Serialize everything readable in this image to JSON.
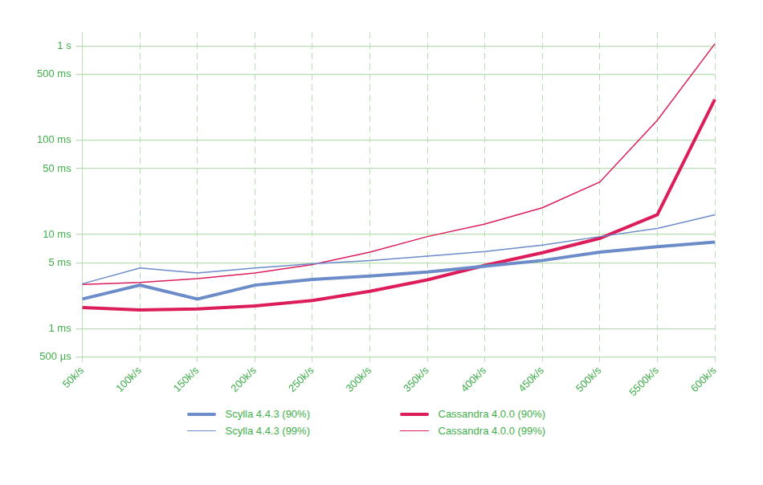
{
  "chart_data": {
    "type": "line",
    "categories": [
      "50k/s",
      "100k/s",
      "150k/s",
      "200k/s",
      "250k/s",
      "300k/s",
      "350k/s",
      "400k/s",
      "450k/s",
      "500k/s",
      "5500k/s",
      "600k/s"
    ],
    "series": [
      {
        "name": "Scylla 4.4.3 (90%)",
        "color": "#6b8bc9",
        "line_style": "thick",
        "values": [
          2.07,
          2.9,
          2.07,
          2.9,
          3.34,
          3.63,
          4.0,
          4.6,
          5.3,
          6.5,
          7.4,
          8.3
        ]
      },
      {
        "name": "Scylla 4.4.3 (99%)",
        "color": "#6b8bc9",
        "line_style": "thin",
        "values": [
          3.0,
          4.4,
          3.9,
          4.4,
          4.9,
          5.3,
          5.9,
          6.6,
          7.7,
          9.5,
          11.6,
          16.2
        ]
      },
      {
        "name": "Cassandra 4.0.0 (90%)",
        "color": "#dc1d5a",
        "line_style": "thick",
        "values": [
          1.68,
          1.58,
          1.62,
          1.75,
          1.99,
          2.5,
          3.3,
          4.7,
          6.4,
          9.1,
          16.2,
          270
        ]
      },
      {
        "name": "Cassandra 4.0.0 (99%)",
        "color": "#dc1d5a",
        "line_style": "thin",
        "values": [
          2.95,
          3.1,
          3.4,
          3.9,
          4.8,
          6.5,
          9.5,
          12.9,
          19.2,
          36,
          163,
          1050
        ]
      }
    ],
    "log": "y",
    "ylim": [
      0.5,
      1400
    ],
    "yticks": [
      {
        "value": 0.5,
        "label": "500 µs"
      },
      {
        "value": 1,
        "label": "1 ms"
      },
      {
        "value": 5,
        "label": "5 ms"
      },
      {
        "value": 10,
        "label": "10 ms"
      },
      {
        "value": 50,
        "label": "50 ms"
      },
      {
        "value": 100,
        "label": "100 ms"
      },
      {
        "value": 500,
        "label": "500 ms"
      },
      {
        "value": 1000,
        "label": "1 s"
      }
    ],
    "grid": true,
    "legend": "bottom"
  }
}
